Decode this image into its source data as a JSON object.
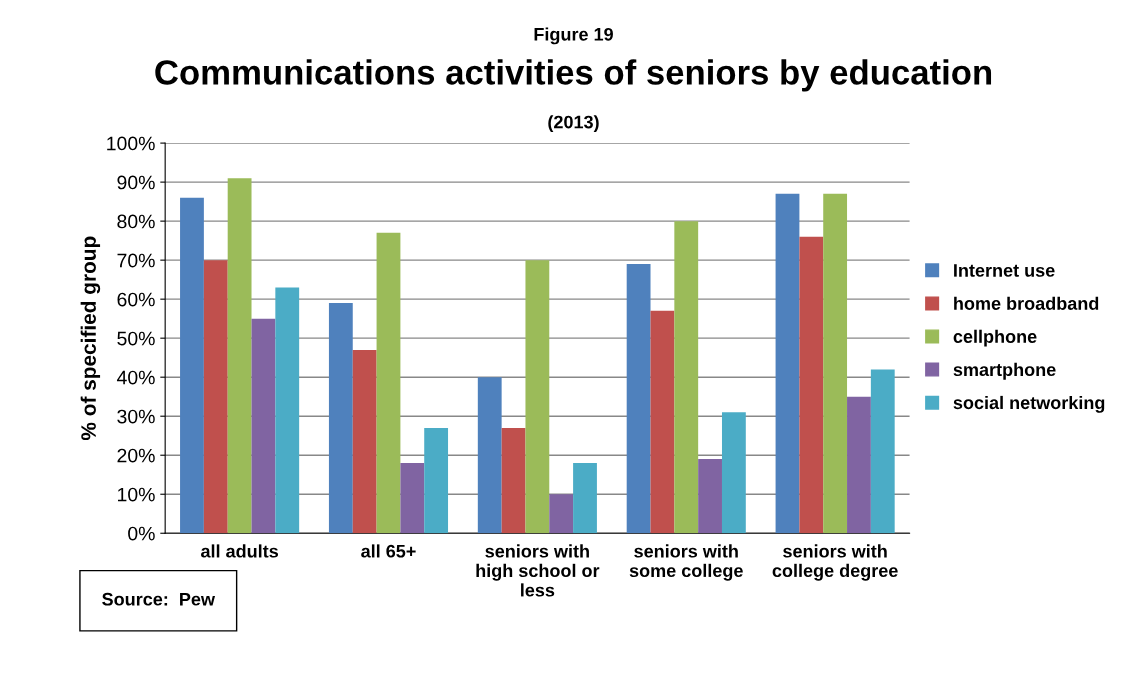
{
  "chart_data": {
    "type": "bar",
    "title": "Communications activities of seniors by education",
    "subtitle": "(2013)",
    "ylabel": "% of specified group",
    "annotations": [
      "Figure 19",
      "Source:  Pew"
    ],
    "categories": [
      "all adults",
      "all 65+",
      "seniors with\nhigh school or\nless",
      "seniors with\nsome college",
      "seniors with\ncollege degree"
    ],
    "series": [
      {
        "name": "Internet use",
        "color": "#4f81bd",
        "values": [
          86,
          59,
          40,
          69,
          87
        ]
      },
      {
        "name": "home broadband",
        "color": "#c0504d",
        "values": [
          70,
          47,
          27,
          57,
          76
        ]
      },
      {
        "name": "cellphone",
        "color": "#9bbb59",
        "values": [
          91,
          77,
          70,
          80,
          87
        ]
      },
      {
        "name": "smartphone",
        "color": "#8064a2",
        "values": [
          55,
          18,
          10,
          19,
          35
        ]
      },
      {
        "name": "social networking",
        "color": "#4bacc6",
        "values": [
          63,
          27,
          18,
          31,
          42
        ]
      }
    ],
    "ylim": [
      0,
      100
    ],
    "yticks": [
      {
        "value": 0,
        "label": "0%"
      },
      {
        "value": 10,
        "label": "10%"
      },
      {
        "value": 20,
        "label": "20%"
      },
      {
        "value": 30,
        "label": "30%"
      },
      {
        "value": 40,
        "label": "40%"
      },
      {
        "value": 50,
        "label": "50%"
      },
      {
        "value": 60,
        "label": "60%"
      },
      {
        "value": 70,
        "label": "70%"
      },
      {
        "value": 80,
        "label": "80%"
      },
      {
        "value": 90,
        "label": "90%"
      },
      {
        "value": 100,
        "label": "100%"
      }
    ],
    "grid": "y",
    "legend": "right"
  }
}
